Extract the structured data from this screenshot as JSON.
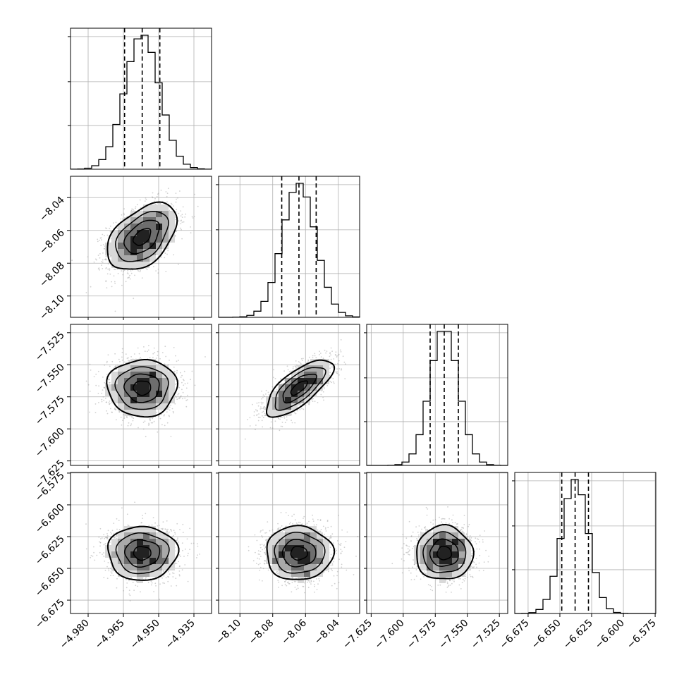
{
  "chart_data": {
    "type": "corner",
    "n_params": 4,
    "colors": {
      "line": "#000000",
      "grid": "#b0b0b0",
      "points": "#9a9a9a",
      "background": "#ffffff"
    },
    "grid": true,
    "params": [
      {
        "range": [
          -4.9875,
          -4.9275
        ],
        "mean": -4.957,
        "sd": 0.0074,
        "quantiles": [
          -4.9645,
          -4.957,
          -4.9495
        ],
        "ticks": [
          -4.98,
          -4.965,
          -4.95,
          -4.935
        ],
        "tick_labels": [
          "−4.980",
          "−4.965",
          "−4.950",
          "−4.935"
        ]
      },
      {
        "range": [
          -8.113,
          -8.027
        ],
        "mean": -8.064,
        "sd": 0.0102,
        "quantiles": [
          -8.0745,
          -8.064,
          -8.0535
        ],
        "ticks": [
          -8.1,
          -8.08,
          -8.06,
          -8.04
        ],
        "tick_labels": [
          "−8.10",
          "−8.08",
          "−8.06",
          "−8.04"
        ]
      },
      {
        "range": [
          -7.6285,
          -7.5185
        ],
        "mean": -7.568,
        "sd": 0.0111,
        "quantiles": [
          -7.579,
          -7.568,
          -7.557
        ],
        "ticks": [
          -7.625,
          -7.6,
          -7.575,
          -7.55,
          -7.525
        ],
        "tick_labels": [
          "−7.625",
          "−7.600",
          "−7.575",
          "−7.550",
          "−7.525"
        ]
      },
      {
        "range": [
          -6.6855,
          -6.5745
        ],
        "mean": -6.638,
        "sd": 0.0106,
        "quantiles": [
          -6.6485,
          -6.638,
          -6.6275
        ],
        "ticks": [
          -6.675,
          -6.65,
          -6.625,
          -6.6,
          -6.575
        ],
        "tick_labels": [
          "−6.675",
          "−6.650",
          "−6.625",
          "−6.600",
          "−6.575"
        ]
      }
    ],
    "correlations": {
      "1-0": 0.45,
      "2-0": 0.0,
      "2-1": 0.72,
      "3-0": 0.0,
      "3-1": 0.0,
      "3-2": 0.0
    }
  }
}
